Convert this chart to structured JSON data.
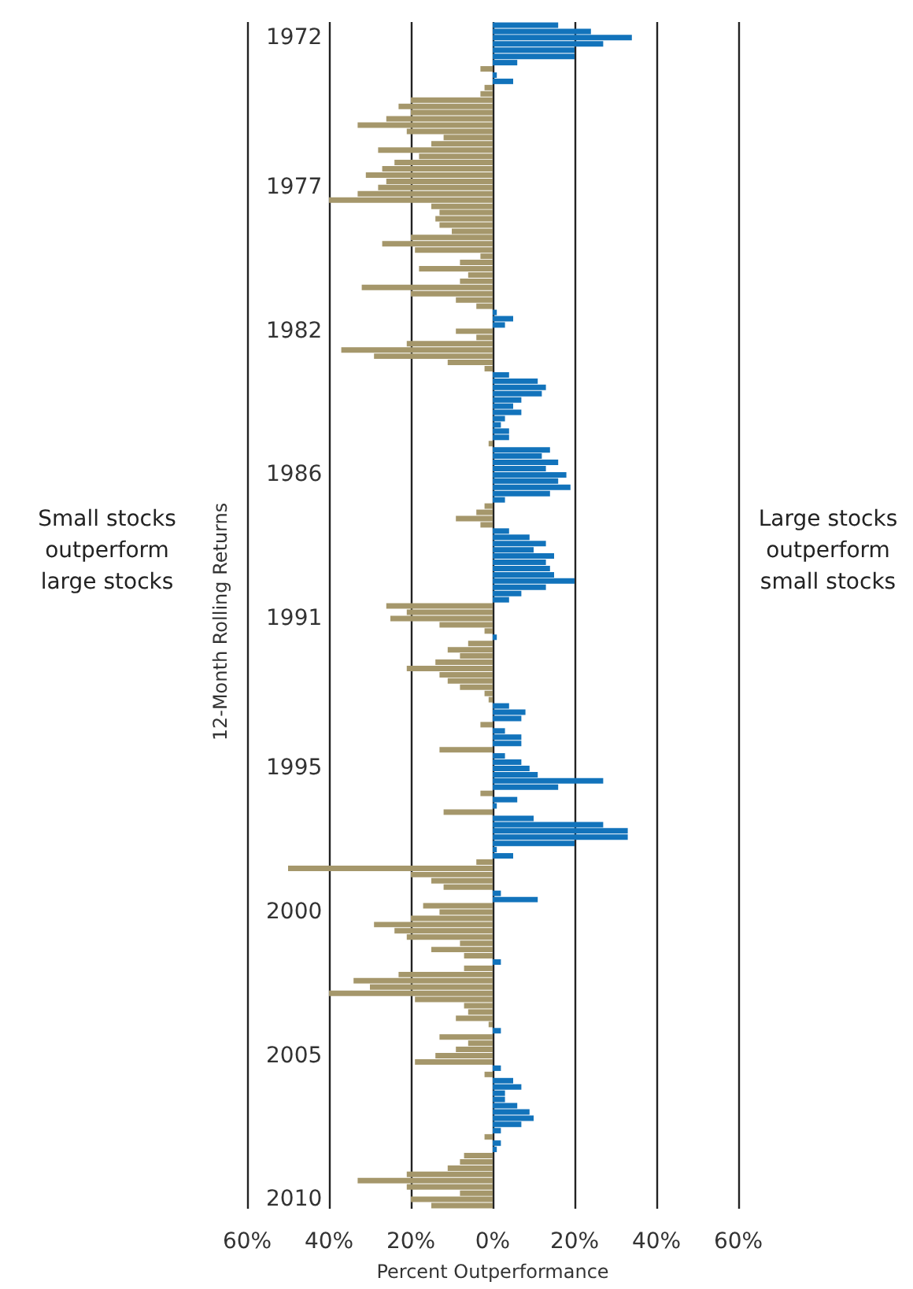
{
  "chart_data": {
    "type": "bar",
    "orientation": "horizontal",
    "xlabel": "Percent Outperformance",
    "ylabel": "12-Month Rolling Returns",
    "annotations": [
      "Small stocks outperform large stocks",
      "Large stocks outperform small stocks"
    ],
    "categories": [
      null,
      null,
      "1972",
      null,
      null,
      null,
      null,
      null,
      null,
      null,
      null,
      null,
      null,
      null,
      null,
      null,
      null,
      null,
      null,
      null,
      null,
      null,
      null,
      null,
      null,
      null,
      "1977",
      null,
      null,
      null,
      null,
      null,
      null,
      null,
      null,
      null,
      null,
      null,
      null,
      null,
      null,
      null,
      null,
      null,
      null,
      null,
      null,
      null,
      null,
      "1982",
      null,
      null,
      null,
      null,
      null,
      null,
      null,
      null,
      null,
      null,
      null,
      null,
      null,
      null,
      null,
      null,
      null,
      null,
      null,
      null,
      null,
      null,
      "1986",
      null,
      null,
      null,
      null,
      null,
      null,
      null,
      null,
      null,
      null,
      null,
      null,
      null,
      null,
      null,
      null,
      null,
      null,
      null,
      null,
      null,
      null,
      "1991",
      null,
      null,
      null,
      null,
      null,
      null,
      null,
      null,
      null,
      null,
      null,
      null,
      null,
      null,
      null,
      null,
      null,
      null,
      null,
      null,
      null,
      null,
      null,
      "1995",
      null,
      null,
      null,
      null,
      null,
      null,
      null,
      null,
      null,
      null,
      null,
      null,
      null,
      null,
      null,
      null,
      null,
      null,
      null,
      null,
      null,
      null,
      "2000",
      null,
      null,
      null,
      null,
      null,
      null,
      null,
      null,
      null,
      null,
      null,
      null,
      null,
      null,
      null,
      null,
      null,
      null,
      null,
      null,
      null,
      null,
      "2005",
      null,
      null,
      null,
      null,
      null,
      null,
      null,
      null,
      null,
      null,
      null,
      null,
      null,
      null,
      null,
      null,
      null,
      null,
      null,
      null,
      null,
      null,
      "2010",
      null
    ],
    "values": [
      16,
      24,
      34,
      27,
      20,
      20,
      6,
      -3,
      1,
      5,
      -2,
      -3,
      -20,
      -23,
      -20,
      -26,
      -33,
      -21,
      -12,
      -15,
      -28,
      -18,
      -24,
      -27,
      -31,
      -26,
      -28,
      -33,
      -40,
      -15,
      -13,
      -14,
      -13,
      -10,
      -20,
      -27,
      -19,
      -3,
      -8,
      -18,
      -6,
      -8,
      -32,
      -20,
      -9,
      -4,
      1,
      5,
      3,
      -9,
      -4,
      -21,
      -37,
      -29,
      -11,
      -2,
      4,
      11,
      13,
      12,
      7,
      5,
      7,
      3,
      2,
      4,
      4,
      -1,
      14,
      12,
      16,
      13,
      18,
      16,
      19,
      14,
      3,
      -2,
      -4,
      -9,
      -3,
      4,
      9,
      13,
      10,
      15,
      13,
      14,
      15,
      20,
      13,
      7,
      4,
      -26,
      -21,
      -25,
      -13,
      -2,
      1,
      -6,
      -11,
      -8,
      -14,
      -21,
      -13,
      -11,
      -8,
      -2,
      -1,
      4,
      8,
      7,
      -3,
      3,
      7,
      7,
      -13,
      3,
      7,
      9,
      11,
      27,
      16,
      -3,
      6,
      1,
      -12,
      10,
      27,
      33,
      33,
      20,
      1,
      5,
      -4,
      -50,
      -20,
      -15,
      -12,
      2,
      11,
      -17,
      -13,
      -20,
      -29,
      -24,
      -21,
      -8,
      -15,
      -7,
      2,
      -7,
      -23,
      -34,
      -30,
      -40,
      -19,
      -7,
      -6,
      -9,
      -1,
      2,
      -13,
      -6,
      -9,
      -14,
      -19,
      2,
      -2,
      5,
      7,
      3,
      3,
      6,
      9,
      10,
      7,
      2,
      -2,
      2,
      1,
      -7,
      -8,
      -11,
      -21,
      -33,
      -21,
      -8,
      -20,
      -15
    ],
    "colors": [
      "#1273bb",
      "#1273bb",
      "#1273bb",
      "#1273bb",
      "#1273bb",
      "#1273bb",
      "#1273bb",
      "#a5976b",
      "#1273bb",
      "#1273bb",
      "#a5976b",
      "#a5976b",
      "#a5976b",
      "#a5976b",
      "#a5976b",
      "#a5976b",
      "#a5976b",
      "#a5976b",
      "#a5976b",
      "#a5976b",
      "#a5976b",
      "#a5976b",
      "#a5976b",
      "#a5976b",
      "#a5976b",
      "#a5976b",
      "#a5976b",
      "#a5976b",
      "#a5976b",
      "#a5976b",
      "#a5976b",
      "#a5976b",
      "#a5976b",
      "#a5976b",
      "#a5976b",
      "#a5976b",
      "#a5976b",
      "#a5976b",
      "#a5976b",
      "#a5976b",
      "#a5976b",
      "#a5976b",
      "#a5976b",
      "#a5976b",
      "#a5976b",
      "#a5976b",
      "#1273bb",
      "#1273bb",
      "#1273bb",
      "#a5976b",
      "#a5976b",
      "#a5976b",
      "#a5976b",
      "#a5976b",
      "#a5976b",
      "#a5976b",
      "#1273bb",
      "#1273bb",
      "#1273bb",
      "#1273bb",
      "#1273bb",
      "#1273bb",
      "#1273bb",
      "#1273bb",
      "#1273bb",
      "#1273bb",
      "#1273bb",
      "#a5976b",
      "#1273bb",
      "#1273bb",
      "#1273bb",
      "#1273bb",
      "#1273bb",
      "#1273bb",
      "#1273bb",
      "#1273bb",
      "#1273bb",
      "#a5976b",
      "#a5976b",
      "#a5976b",
      "#a5976b",
      "#1273bb",
      "#1273bb",
      "#1273bb",
      "#1273bb",
      "#1273bb",
      "#1273bb",
      "#1273bb",
      "#1273bb",
      "#1273bb",
      "#1273bb",
      "#1273bb",
      "#1273bb",
      "#a5976b",
      "#a5976b",
      "#a5976b",
      "#a5976b",
      "#a5976b",
      "#1273bb",
      "#a5976b",
      "#a5976b",
      "#a5976b",
      "#a5976b",
      "#a5976b",
      "#a5976b",
      "#a5976b",
      "#a5976b",
      "#a5976b",
      "#a5976b",
      "#1273bb",
      "#1273bb",
      "#1273bb",
      "#a5976b",
      "#1273bb",
      "#1273bb",
      "#1273bb",
      "#a5976b",
      "#1273bb",
      "#1273bb",
      "#1273bb",
      "#1273bb",
      "#1273bb",
      "#1273bb",
      "#a5976b",
      "#1273bb",
      "#1273bb",
      "#a5976b",
      "#1273bb",
      "#1273bb",
      "#1273bb",
      "#1273bb",
      "#1273bb",
      "#1273bb",
      "#1273bb",
      "#a5976b",
      "#a5976b",
      "#a5976b",
      "#a5976b",
      "#a5976b",
      "#1273bb",
      "#1273bb",
      "#a5976b",
      "#a5976b",
      "#a5976b",
      "#a5976b",
      "#a5976b",
      "#a5976b",
      "#a5976b",
      "#a5976b",
      "#a5976b",
      "#1273bb",
      "#a5976b",
      "#a5976b",
      "#a5976b",
      "#a5976b",
      "#a5976b",
      "#a5976b",
      "#a5976b",
      "#a5976b",
      "#a5976b",
      "#a5976b",
      "#1273bb",
      "#a5976b",
      "#a5976b",
      "#a5976b",
      "#a5976b",
      "#a5976b",
      "#1273bb",
      "#a5976b",
      "#1273bb",
      "#1273bb",
      "#1273bb",
      "#1273bb",
      "#1273bb",
      "#1273bb",
      "#1273bb",
      "#1273bb",
      "#1273bb",
      "#a5976b",
      "#1273bb",
      "#1273bb",
      "#a5976b",
      "#a5976b",
      "#a5976b",
      "#a5976b",
      "#a5976b",
      "#a5976b",
      "#a5976b",
      "#a5976b",
      "#a5976b"
    ],
    "xlim": [
      -60,
      60
    ],
    "xticks": [
      {
        "value": -60,
        "label": "60%"
      },
      {
        "value": -40,
        "label": "40%"
      },
      {
        "value": -20,
        "label": "20%"
      },
      {
        "value": 0,
        "label": "0%"
      },
      {
        "value": 20,
        "label": "20%"
      },
      {
        "value": 40,
        "label": "40%"
      },
      {
        "value": 60,
        "label": "60%"
      }
    ],
    "grid": "x"
  }
}
